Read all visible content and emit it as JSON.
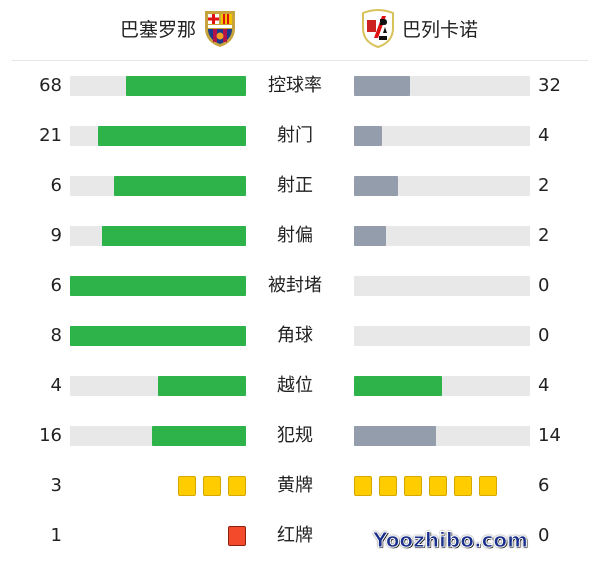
{
  "home": {
    "name": "巴塞罗那",
    "crest_icon": "fc-barcelona-crest"
  },
  "away": {
    "name": "巴列卡诺",
    "crest_icon": "rayo-vallecano-crest"
  },
  "colors": {
    "leader": "#2db34a",
    "trailer": "#939dab",
    "track": "#e8e8e8",
    "yellow": "#ffcc00",
    "red": "#f24a2a"
  },
  "stats": [
    {
      "label": "控球率",
      "home": 68,
      "away": 32
    },
    {
      "label": "射门",
      "home": 21,
      "away": 4
    },
    {
      "label": "射正",
      "home": 6,
      "away": 2
    },
    {
      "label": "射偏",
      "home": 9,
      "away": 2
    },
    {
      "label": "被封堵",
      "home": 6,
      "away": 0
    },
    {
      "label": "角球",
      "home": 8,
      "away": 0
    },
    {
      "label": "越位",
      "home": 4,
      "away": 4
    },
    {
      "label": "犯规",
      "home": 16,
      "away": 14
    }
  ],
  "cards": [
    {
      "label": "黄牌",
      "type": "yellow",
      "home": 3,
      "away": 6
    },
    {
      "label": "红牌",
      "type": "red",
      "home": 1,
      "away": 0
    }
  ],
  "watermark": "Yoozhibo.com"
}
